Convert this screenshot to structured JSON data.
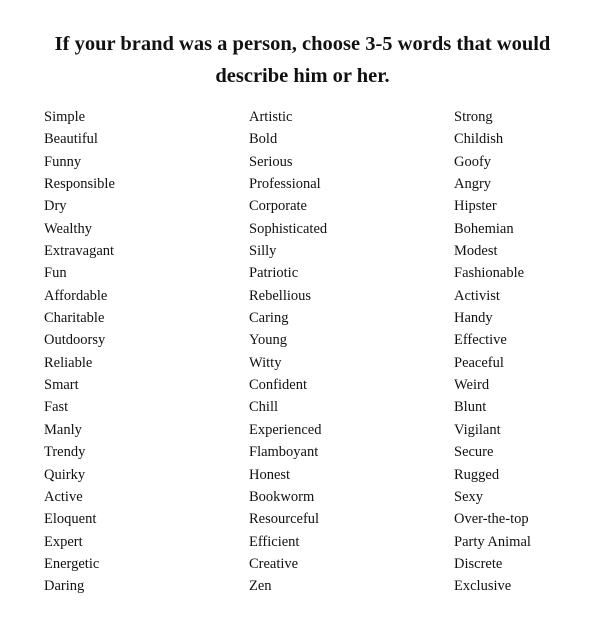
{
  "title": {
    "line1": "If your brand was a person, choose 3-5 words that would",
    "line2": "describe him or her."
  },
  "columns": [
    [
      "Simple",
      "Beautiful",
      "Funny",
      "Responsible",
      "Dry",
      "Wealthy",
      "Extravagant",
      "Fun",
      "Affordable",
      "Charitable",
      "Outdoorsy",
      "Reliable",
      "Smart",
      "Fast",
      "Manly",
      "Trendy",
      "Quirky",
      "Active",
      "Eloquent",
      "Expert",
      "Energetic",
      "Daring"
    ],
    [
      "Artistic",
      "Bold",
      "Serious",
      "Professional",
      "Corporate",
      "Sophisticated",
      "Silly",
      "Patriotic",
      "Rebellious",
      "Caring",
      "Young",
      "Witty",
      "Confident",
      "Chill",
      "Experienced",
      "Flamboyant",
      "Honest",
      "Bookworm",
      "Resourceful",
      "Efficient",
      "Creative",
      "Zen"
    ],
    [
      "Strong",
      "Childish",
      "Goofy",
      "Angry",
      "Hipster",
      "Bohemian",
      "Modest",
      "Fashionable",
      "Activist",
      "Handy",
      "Effective",
      "Peaceful",
      "Weird",
      "Blunt",
      "Vigilant",
      "Secure",
      "Rugged",
      "Sexy",
      "Over-the-top",
      "Party Animal",
      "Discrete",
      "Exclusive"
    ]
  ]
}
